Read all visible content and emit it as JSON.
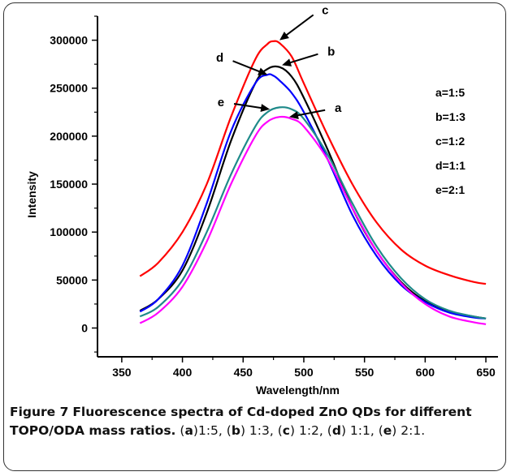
{
  "caption": {
    "label": "Figure 7",
    "title": "Fluorescence spectra of Cd-doped ZnO QDs for different TOPO/ODA mass ratios.",
    "parts": [
      {
        "open": "(",
        "key": "a",
        "close": ")1:5, "
      },
      {
        "open": "(",
        "key": "b",
        "close": ") 1:3, "
      },
      {
        "open": "(",
        "key": "c",
        "close": ") 1:2, "
      },
      {
        "open": "(",
        "key": "d",
        "close": ") 1:1, "
      },
      {
        "open": "(",
        "key": "e",
        "close": ") 2:1."
      }
    ]
  },
  "chart_data": {
    "type": "line",
    "xlabel": "Wavelength/nm",
    "ylabel": "Intensity",
    "xlim": [
      330,
      660
    ],
    "ylim": [
      -30000,
      325000
    ],
    "xticks": [
      350,
      400,
      450,
      500,
      550,
      600,
      650
    ],
    "yticks": [
      0,
      50000,
      100000,
      150000,
      200000,
      250000,
      300000
    ],
    "legend_position": "right",
    "legend": [
      "a=1:5",
      "b=1:3",
      "c=1:2",
      "d=1:1",
      "e=2:1"
    ],
    "series": [
      {
        "name": "c",
        "color": "#ff0000",
        "x": [
          365,
          380,
          400,
          420,
          440,
          460,
          470,
          475,
          480,
          490,
          500,
          520,
          540,
          560,
          580,
          600,
          620,
          640,
          650
        ],
        "y": [
          54000,
          68000,
          100000,
          150000,
          220000,
          280000,
          296000,
          299000,
          297000,
          283000,
          255000,
          200000,
          150000,
          110000,
          82000,
          65000,
          55000,
          48000,
          46000
        ]
      },
      {
        "name": "b",
        "color": "#000000",
        "x": [
          365,
          380,
          400,
          420,
          440,
          460,
          470,
          480,
          490,
          500,
          520,
          540,
          560,
          580,
          600,
          620,
          640,
          650
        ],
        "y": [
          18000,
          30000,
          60000,
          120000,
          195000,
          255000,
          270000,
          272000,
          262000,
          240000,
          185000,
          125000,
          80000,
          48000,
          28000,
          17000,
          12000,
          10000
        ]
      },
      {
        "name": "d",
        "color": "#0000ff",
        "x": [
          365,
          380,
          400,
          420,
          440,
          460,
          470,
          475,
          480,
          490,
          500,
          520,
          540,
          560,
          580,
          600,
          620,
          640,
          650
        ],
        "y": [
          17000,
          30000,
          65000,
          130000,
          205000,
          255000,
          264000,
          263000,
          258000,
          245000,
          225000,
          175000,
          118000,
          75000,
          45000,
          27000,
          16000,
          11000,
          10000
        ]
      },
      {
        "name": "e",
        "color": "#1f8a8a",
        "x": [
          365,
          380,
          400,
          420,
          440,
          460,
          470,
          480,
          490,
          500,
          520,
          540,
          560,
          580,
          600,
          620,
          640,
          650
        ],
        "y": [
          12000,
          22000,
          50000,
          100000,
          160000,
          210000,
          225000,
          230000,
          228000,
          218000,
          180000,
          130000,
          85000,
          52000,
          30000,
          18000,
          12000,
          10000
        ]
      },
      {
        "name": "a",
        "color": "#ff00ff",
        "x": [
          365,
          380,
          400,
          420,
          440,
          460,
          470,
          480,
          490,
          500,
          520,
          540,
          560,
          580,
          600,
          620,
          640,
          650
        ],
        "y": [
          5000,
          16000,
          43000,
          90000,
          150000,
          200000,
          215000,
          220000,
          218000,
          210000,
          175000,
          125000,
          80000,
          47000,
          25000,
          12000,
          6000,
          4000
        ]
      }
    ],
    "annotations": [
      {
        "text": "c",
        "x": 480,
        "y": 300000
      },
      {
        "text": "b",
        "x": 482,
        "y": 274000
      },
      {
        "text": "d",
        "x": 470,
        "y": 264000
      },
      {
        "text": "e",
        "x": 472,
        "y": 228000
      },
      {
        "text": "a",
        "x": 488,
        "y": 220000
      }
    ]
  }
}
